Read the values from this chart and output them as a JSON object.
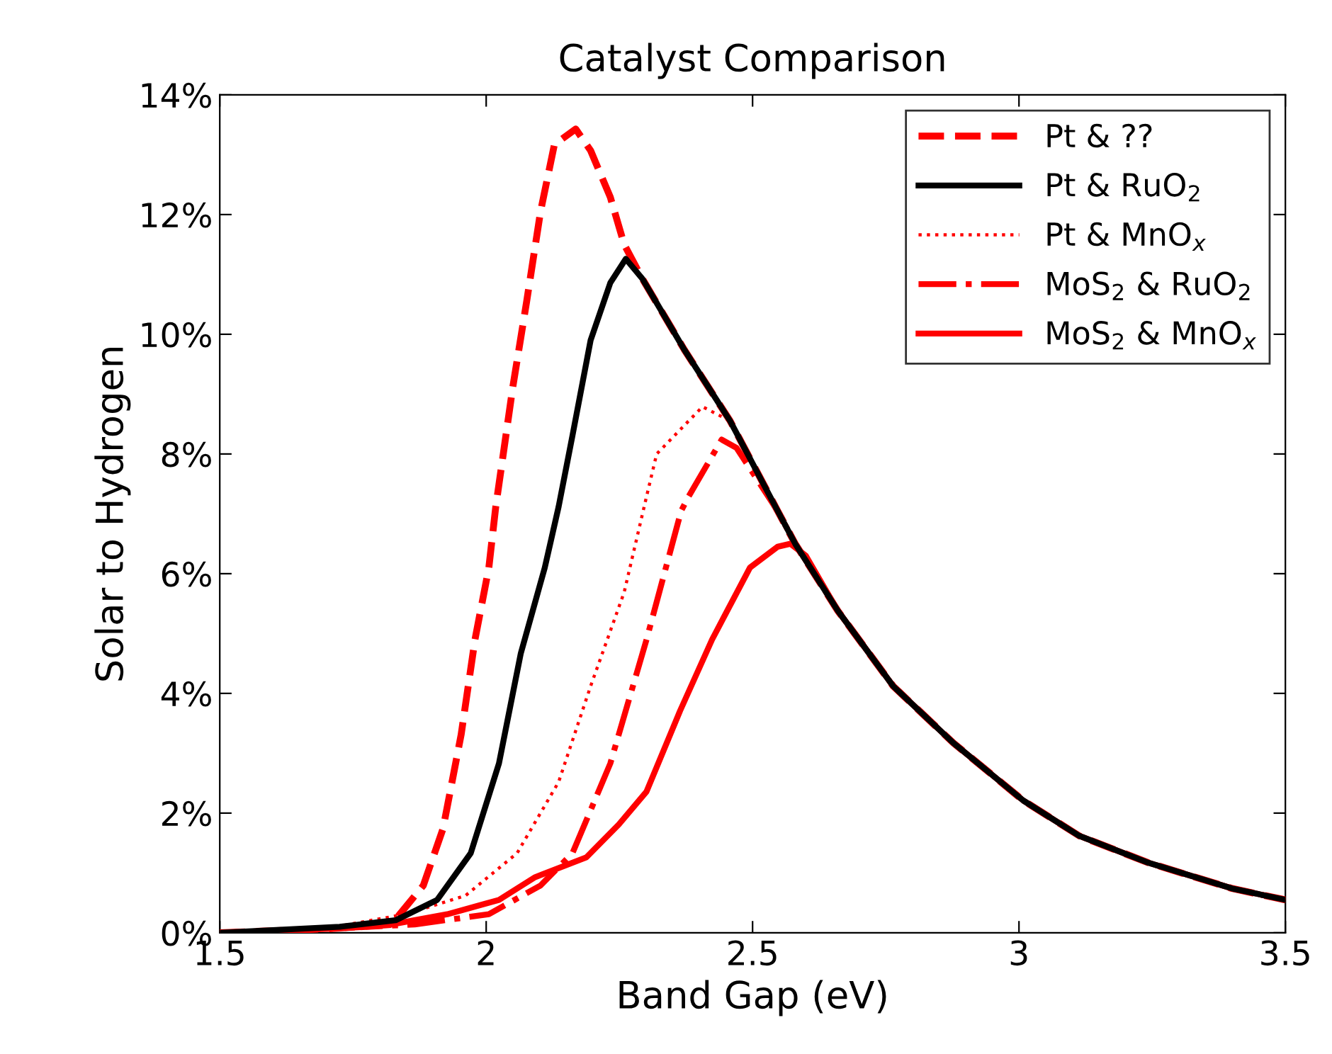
{
  "chart_data": {
    "type": "line",
    "title": "Catalyst Comparison",
    "xlabel": "Band Gap (eV)",
    "ylabel": "Solar to Hydrogen",
    "xlim": [
      1.5,
      3.5
    ],
    "xticks": [
      1.5,
      2,
      2.5,
      3,
      3.5
    ],
    "ylim": [
      0,
      14
    ],
    "yticks": [
      {
        "value": 0,
        "label": "0%"
      },
      {
        "value": 2,
        "label": "2%"
      },
      {
        "value": 4,
        "label": "4%"
      },
      {
        "value": 6,
        "label": "6%"
      },
      {
        "value": 8,
        "label": "8%"
      },
      {
        "value": 10,
        "label": "10%"
      },
      {
        "value": 12,
        "label": "12%"
      },
      {
        "value": 14,
        "label": "14%"
      }
    ],
    "grid": false,
    "legend": "top right",
    "marker": "none",
    "series": [
      {
        "name": "Pt & ??",
        "color": "#ff0000",
        "line_style": "dashed",
        "x": [
          1.5,
          1.71,
          1.822,
          1.882,
          1.919,
          1.953,
          1.979,
          2.005,
          2.018,
          2.05,
          2.076,
          2.102,
          2.128,
          2.168,
          2.196,
          2.233,
          2.259,
          2.293,
          2.372,
          2.458,
          2.547,
          2.58,
          2.66,
          2.764,
          2.877,
          3.008,
          3.113,
          3.243,
          3.4,
          3.5
        ],
        "values": [
          0,
          0.07,
          0.14,
          0.79,
          1.74,
          3.31,
          4.9,
          6.1,
          7.12,
          9.12,
          10.55,
          12.05,
          13.17,
          13.43,
          13.07,
          12.29,
          11.5,
          10.93,
          9.74,
          8.55,
          7.05,
          6.5,
          5.38,
          4.12,
          3.17,
          2.21,
          1.62,
          1.17,
          0.74,
          0.55
        ]
      },
      {
        "name": "Pt & RuO$_{2}$",
        "color": "#000000",
        "line_style": "solid",
        "x": [
          1.5,
          1.725,
          1.83,
          1.908,
          1.971,
          2.024,
          2.065,
          2.11,
          2.136,
          2.162,
          2.196,
          2.233,
          2.262,
          2.293,
          2.372,
          2.458,
          2.547,
          2.58,
          2.66,
          2.764,
          2.877,
          3.008,
          3.113,
          3.243,
          3.4,
          3.5
        ],
        "values": [
          0,
          0.1,
          0.21,
          0.55,
          1.33,
          2.83,
          4.67,
          6.1,
          7.12,
          8.31,
          9.9,
          10.86,
          11.26,
          10.93,
          9.74,
          8.55,
          7.05,
          6.5,
          5.38,
          4.12,
          3.17,
          2.21,
          1.62,
          1.17,
          0.74,
          0.55
        ]
      },
      {
        "name": "Pt & MnO$_{x}$",
        "color": "#ff0000",
        "line_style": "dotted",
        "x": [
          1.5,
          1.717,
          1.848,
          1.961,
          2.058,
          2.136,
          2.196,
          2.259,
          2.301,
          2.32,
          2.406,
          2.458,
          2.547,
          2.58,
          2.66,
          2.764,
          2.877,
          3.008,
          3.113,
          3.243,
          3.4,
          3.5
        ],
        "values": [
          0,
          0.1,
          0.31,
          0.62,
          1.33,
          2.52,
          4.12,
          5.69,
          7.29,
          8.0,
          8.79,
          8.55,
          7.05,
          6.5,
          5.38,
          4.12,
          3.17,
          2.21,
          1.62,
          1.17,
          0.74,
          0.55
        ]
      },
      {
        "name": "MoS$_{2}$ & RuO$_{2}$",
        "color": "#ff0000",
        "line_style": "dashdot",
        "x": [
          1.5,
          1.71,
          1.866,
          2.005,
          2.102,
          2.162,
          2.233,
          2.301,
          2.366,
          2.38,
          2.442,
          2.47,
          2.547,
          2.58,
          2.66,
          2.764,
          2.877,
          3.008,
          3.113,
          3.243,
          3.4,
          3.5
        ],
        "values": [
          0,
          0.07,
          0.14,
          0.31,
          0.79,
          1.33,
          2.83,
          4.9,
          7.05,
          7.29,
          8.24,
          8.1,
          7.05,
          6.5,
          5.38,
          4.12,
          3.17,
          2.21,
          1.62,
          1.17,
          0.74,
          0.55
        ]
      },
      {
        "name": "MoS$_{2}$ & MnO$_{x}$",
        "color": "#ff0000",
        "line_style": "solid",
        "x": [
          1.5,
          1.71,
          1.822,
          1.927,
          2.024,
          2.092,
          2.188,
          2.249,
          2.301,
          2.364,
          2.424,
          2.495,
          2.547,
          2.571,
          2.6,
          2.66,
          2.764,
          2.877,
          3.008,
          3.113,
          3.243,
          3.4,
          3.5
        ],
        "values": [
          0,
          0.07,
          0.14,
          0.31,
          0.55,
          0.93,
          1.26,
          1.81,
          2.36,
          3.71,
          4.9,
          6.1,
          6.45,
          6.5,
          6.3,
          5.38,
          4.12,
          3.17,
          2.21,
          1.62,
          1.17,
          0.74,
          0.55
        ]
      }
    ]
  }
}
